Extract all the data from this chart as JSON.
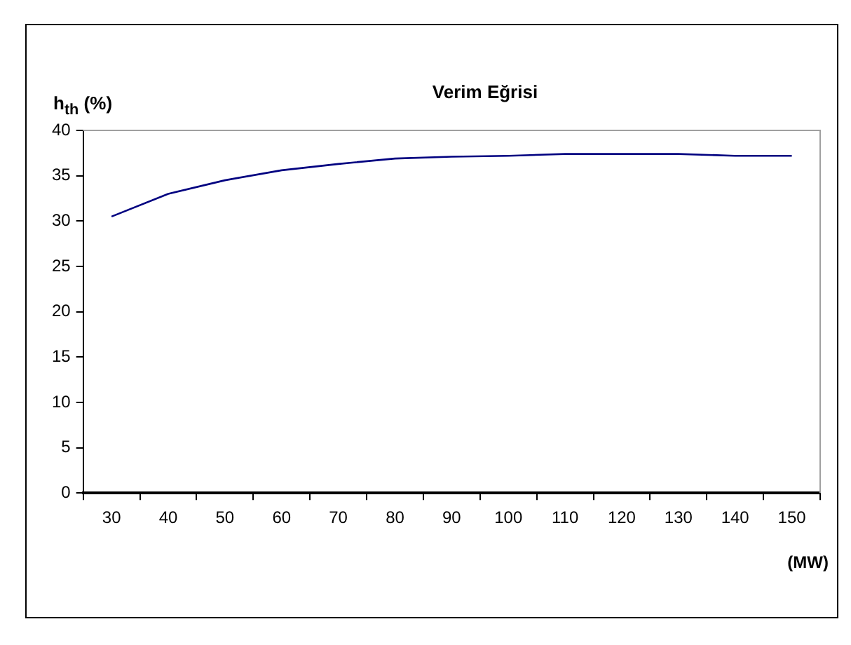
{
  "chart_data": {
    "type": "line",
    "title": "Verim Eğrisi",
    "ylabel": "h$_{th}$ (%)",
    "xlabel": "(MW)",
    "categories": [
      "30",
      "40",
      "50",
      "60",
      "70",
      "80",
      "90",
      "100",
      "110",
      "120",
      "130",
      "140",
      "150"
    ],
    "series": [
      {
        "color": "#000080",
        "values": [
          30.5,
          33.0,
          34.5,
          35.6,
          36.3,
          36.9,
          37.1,
          37.2,
          37.4,
          37.4,
          37.4,
          37.2,
          37.2
        ]
      }
    ],
    "ylim": [
      0,
      40
    ],
    "yticks": [
      0,
      5,
      10,
      15,
      20,
      25,
      30,
      35,
      40
    ],
    "grid": false,
    "legend": false,
    "marker": "none",
    "line_style": "solid"
  }
}
